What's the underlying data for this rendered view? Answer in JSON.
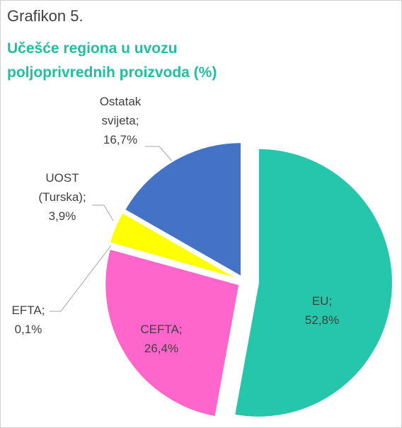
{
  "chart_data": {
    "type": "pie",
    "title": "Grafikon 5.",
    "subtitle": "Učešće regiona u uvozu poljoprivrednih proizvoda (%)",
    "categories": [
      "EU;",
      "CEFTA;",
      "EFTA;",
      "UOST (Turska);",
      "Ostatak svijeta;"
    ],
    "values": [
      52.8,
      26.4,
      0.1,
      3.9,
      16.7
    ],
    "value_labels": [
      "52,8%",
      "26,4%",
      "0,1%",
      "3,9%",
      "16,7%"
    ],
    "colors": [
      "#26c6aa",
      "#ff66cc",
      "#a5a5a5",
      "#ffff00",
      "#4472c4"
    ]
  }
}
